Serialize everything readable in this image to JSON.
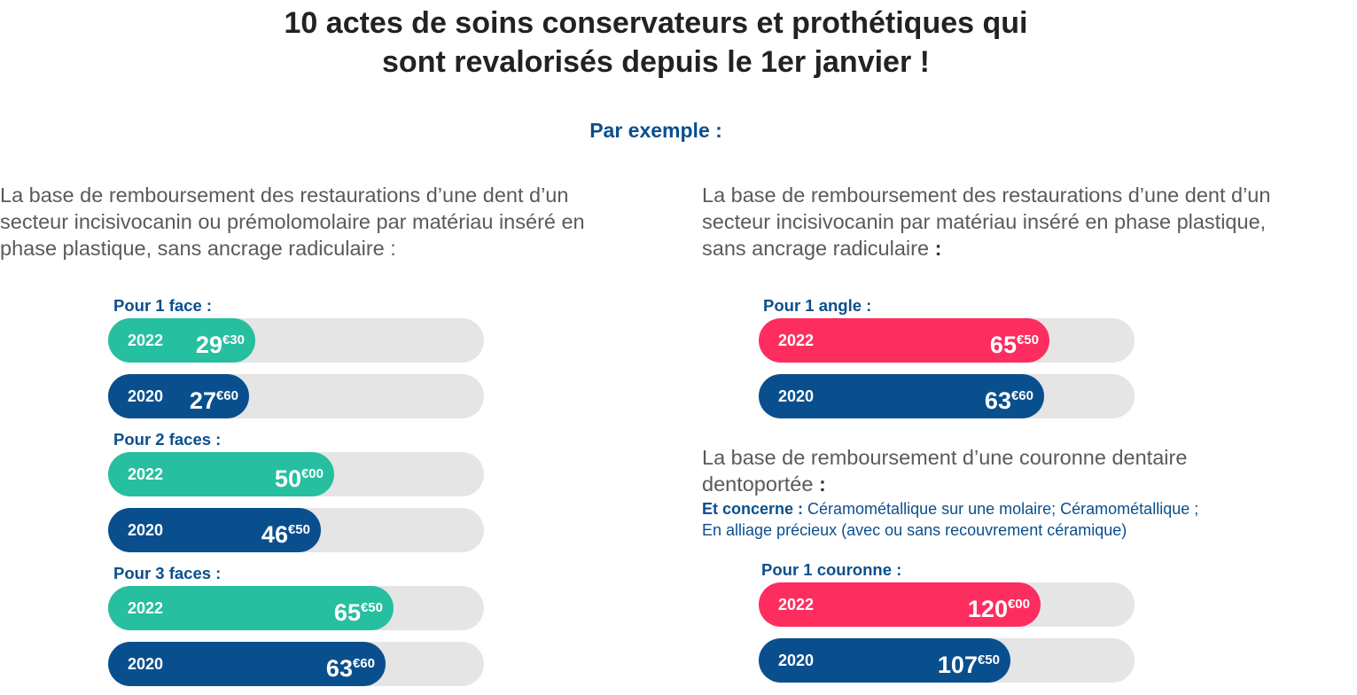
{
  "title": {
    "line1": "10 actes de soins conservateurs et prothétiques qui",
    "line2": "sont revalorisés depuis le 1er janvier !"
  },
  "example_label": "Par exemple :",
  "left": {
    "description": [
      "La base de remboursement des restaurations d’une dent d’un",
      "secteur incisivocanin ou prémolomolaire par matériau inséré en",
      "phase plastique, sans ancrage radiculaire :"
    ]
  },
  "right": {
    "description": [
      "La base de remboursement des restaurations d’une dent d’un",
      "secteur incisivocanin par matériau inséré en phase plastique,",
      "sans ancrage radiculaire"
    ],
    "description_end": " :",
    "crown_description": [
      "La base de remboursement d’une couronne dentaire",
      "dentoportée"
    ],
    "crown_description_end": " :",
    "note_label": "Et concerne :",
    "note_line1": " Céramométallique sur une molaire; Céramométallique ;",
    "note_line2": "En alliage précieux (avec ou sans recouvrement céramique)"
  },
  "colors": {
    "green": "#26bfa0",
    "pink": "#fe2d5f",
    "navy": "#0a4f8d",
    "track": "#e5e5e5"
  },
  "chart_data": [
    {
      "type": "bar",
      "orientation": "horizontal",
      "groups": [
        {
          "label": "Pour 1 face :",
          "bars": [
            {
              "year": "2022",
              "value": 29.3,
              "int": "29",
              "dec": "€30",
              "color": "green"
            },
            {
              "year": "2020",
              "value": 27.6,
              "int": "27",
              "dec": "€60",
              "color": "navy"
            }
          ]
        },
        {
          "label": "Pour 2 faces :",
          "bars": [
            {
              "year": "2022",
              "value": 50.0,
              "int": "50",
              "dec": "€00",
              "color": "green"
            },
            {
              "year": "2020",
              "value": 46.5,
              "int": "46",
              "dec": "€50",
              "color": "navy"
            }
          ]
        },
        {
          "label": "Pour 3 faces :",
          "bars": [
            {
              "year": "2022",
              "value": 65.5,
              "int": "65",
              "dec": "€50",
              "color": "green"
            },
            {
              "year": "2020",
              "value": 63.6,
              "int": "63",
              "dec": "€60",
              "color": "navy"
            }
          ]
        }
      ]
    },
    {
      "type": "bar",
      "orientation": "horizontal",
      "groups": [
        {
          "label": "Pour 1 angle :",
          "bars": [
            {
              "year": "2022",
              "value": 65.5,
              "int": "65",
              "dec": "€50",
              "color": "pink"
            },
            {
              "year": "2020",
              "value": 63.6,
              "int": "63",
              "dec": "€60",
              "color": "navy"
            }
          ]
        }
      ]
    },
    {
      "type": "bar",
      "orientation": "horizontal",
      "groups": [
        {
          "label": "Pour 1 couronne :",
          "bars": [
            {
              "year": "2022",
              "value": 120.0,
              "int": "120",
              "dec": "€00",
              "color": "pink"
            },
            {
              "year": "2020",
              "value": 107.5,
              "int": "107",
              "dec": "€50",
              "color": "navy"
            }
          ]
        }
      ]
    }
  ]
}
